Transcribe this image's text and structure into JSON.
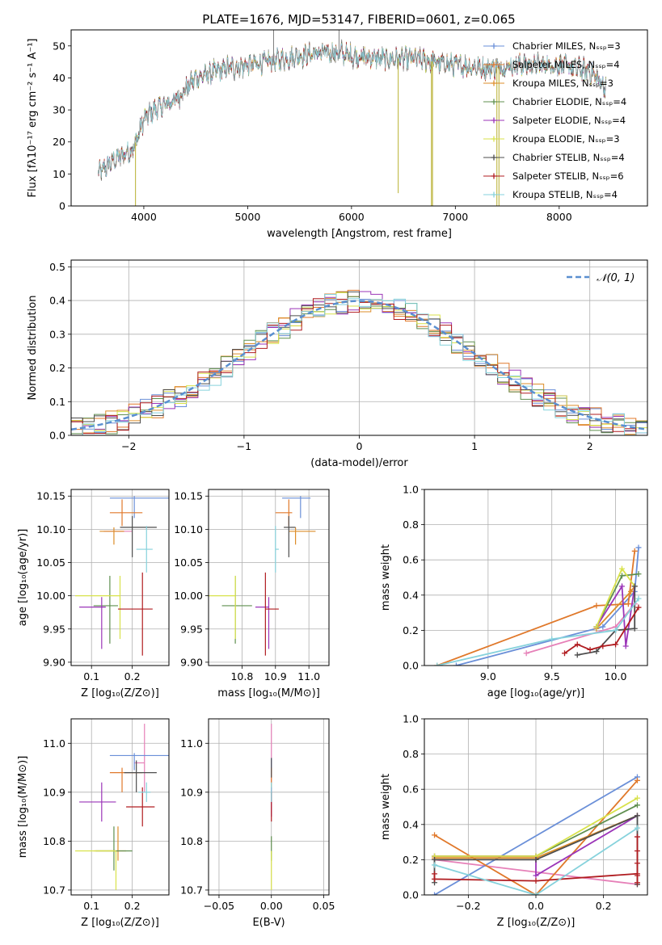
{
  "figure_title": "PLATE=1676, MJD=53147, FIBERID=0601, z=0.065",
  "colors": {
    "series": [
      "#6a8fd8",
      "#e0782a",
      "#dd8e2a",
      "#5f8f4f",
      "#9b35b8",
      "#d8e24a",
      "#4d4d4d",
      "#b01c20",
      "#86d2dc"
    ],
    "extra_pink": "#e680b8",
    "normal_curve": "#5a8fd0"
  },
  "chart_data": [
    {
      "id": "spectrum",
      "type": "line",
      "title": "PLATE=1676, MJD=53147, FIBERID=0601, z=0.065",
      "xlabel": "wavelength [Angstrom, rest frame]",
      "ylabel": "Flux [fλ10⁻¹⁷ erg cm⁻² s⁻¹ A⁻¹]",
      "xlim": [
        3300,
        8850
      ],
      "ylim": [
        0,
        55
      ],
      "xticks": [
        4000,
        5000,
        6000,
        7000,
        8000
      ],
      "yticks": [
        0,
        10,
        20,
        30,
        40,
        50
      ],
      "grid": false,
      "legend_position": "top-right",
      "legend": [
        {
          "label": "Chabrier MILES, Nₛₛₚ=3",
          "marker": "+"
        },
        {
          "label": "Salpeter MILES, Nₛₛₚ=4",
          "marker": "+"
        },
        {
          "label": "Kroupa MILES, Nₛₛₚ=3",
          "marker": "+"
        },
        {
          "label": "Chabrier ELODIE, Nₛₛₚ=4",
          "marker": "+"
        },
        {
          "label": "Salpeter ELODIE, Nₛₛₚ=4",
          "marker": "+"
        },
        {
          "label": "Kroupa ELODIE, Nₛₛₚ=3",
          "marker": "+"
        },
        {
          "label": "Chabrier STELIB, Nₛₛₚ=4",
          "marker": "+"
        },
        {
          "label": "Salpeter STELIB, Nₛₛₚ=6",
          "marker": "+"
        },
        {
          "label": "Kroupa STELIB, Nₛₛₚ=4",
          "marker": "+"
        }
      ],
      "continuum_x": [
        3560,
        3700,
        3900,
        4000,
        4100,
        4300,
        4500,
        4800,
        5000,
        5200,
        5500,
        5800,
        6000,
        6300,
        6600,
        7000,
        7300,
        7600,
        8000,
        8300,
        8450
      ],
      "continuum_y": [
        10,
        14,
        18,
        27,
        30,
        33,
        40,
        43,
        44,
        45,
        47,
        48,
        47,
        46,
        46,
        44,
        43,
        44,
        44,
        42,
        37
      ],
      "spikes": [
        {
          "x": 3920,
          "y": 0
        },
        {
          "x": 5250,
          "y": 55
        },
        {
          "x": 5880,
          "y": 55
        },
        {
          "x": 6450,
          "y": 4
        },
        {
          "x": 6770,
          "y": 0
        },
        {
          "x": 6780,
          "y": 0
        },
        {
          "x": 7400,
          "y": 0
        },
        {
          "x": 7420,
          "y": 0
        }
      ]
    },
    {
      "id": "residuals",
      "type": "line",
      "xlabel": "(data-model)/error",
      "ylabel": "Normed distribution",
      "xlim": [
        -2.5,
        2.5
      ],
      "ylim": [
        0,
        0.52
      ],
      "xticks": [
        -2,
        -1,
        0,
        1,
        2
      ],
      "yticks": [
        0.0,
        0.1,
        0.2,
        0.3,
        0.4,
        0.5
      ],
      "grid": true,
      "legend_position": "top-right",
      "legend": [
        {
          "label": "𝒩(0, 1)",
          "style": "dashed"
        }
      ],
      "bin_width": 0.1,
      "normal": {
        "mean": 0,
        "sigma": 1
      }
    },
    {
      "id": "age-vs-Z",
      "type": "scatter",
      "xlabel": "Z [log₁₀(Z/Z⊙)]",
      "ylabel": "age  [log₁₀(age/yr)]",
      "xlim": [
        0.05,
        0.29
      ],
      "ylim": [
        9.895,
        10.16
      ],
      "xticks": [
        0.1,
        0.2
      ],
      "yticks": [
        9.9,
        9.95,
        10.0,
        10.05,
        10.1,
        10.15
      ],
      "grid": true,
      "points": [
        {
          "x": 0.205,
          "y": 10.147,
          "xerr": [
            0.06,
            0.09
          ],
          "yerr": [
            0.03,
            0.003
          ]
        },
        {
          "x": 0.175,
          "y": 10.125,
          "xerr": [
            0.03,
            0.05
          ],
          "yerr": [
            0.02,
            0.02
          ]
        },
        {
          "x": 0.155,
          "y": 10.097,
          "xerr": [
            0.035,
            0.025
          ],
          "yerr": [
            0.02,
            0.006
          ]
        },
        {
          "x": 0.145,
          "y": 9.985,
          "xerr": [
            0.04,
            0.02
          ],
          "yerr": [
            0.057,
            0.045
          ]
        },
        {
          "x": 0.125,
          "y": 9.983,
          "xerr": [
            0.055,
            0.01
          ],
          "yerr": [
            0.063,
            0.015
          ]
        },
        {
          "x": 0.17,
          "y": 10.0,
          "xerr": [
            0.11,
            0.0
          ],
          "yerr": [
            0.065,
            0.03
          ]
        },
        {
          "x": 0.2,
          "y": 10.103,
          "xerr": [
            0.03,
            0.06
          ],
          "yerr": [
            0.045,
            0.017
          ]
        },
        {
          "x": 0.225,
          "y": 9.98,
          "xerr": [
            0.06,
            0.025
          ],
          "yerr": [
            0.07,
            0.055
          ]
        },
        {
          "x": 0.235,
          "y": 10.07,
          "xerr": [
            0.025,
            0.015
          ],
          "yerr": [
            0.035,
            0.035
          ]
        }
      ],
      "extra_point": {
        "x": 0.18,
        "y": 10.097,
        "xerr": [
          0.05,
          0.02
        ],
        "yerr": [
          0.0,
          0.0
        ]
      }
    },
    {
      "id": "age-vs-mass",
      "type": "scatter",
      "xlabel": "mass [log₁₀(M/M⊙)]",
      "ylabel": "",
      "xlim": [
        10.7,
        11.06
      ],
      "ylim": [
        9.895,
        10.16
      ],
      "xticks": [
        10.8,
        10.9,
        11.0
      ],
      "yticks": [
        9.9,
        9.95,
        10.0,
        10.05,
        10.1,
        10.15
      ],
      "grid": true,
      "points": [
        {
          "x": 10.975,
          "y": 10.147,
          "xerr": [
            0.055,
            0.03
          ],
          "yerr": [
            0.03,
            0.003
          ]
        },
        {
          "x": 10.94,
          "y": 10.125,
          "xerr": [
            0.04,
            0.01
          ],
          "yerr": [
            0.02,
            0.02
          ]
        },
        {
          "x": 10.96,
          "y": 10.097,
          "xerr": [
            0.02,
            0.06
          ],
          "yerr": [
            0.02,
            0.006
          ]
        },
        {
          "x": 10.78,
          "y": 9.985,
          "xerr": [
            0.04,
            0.05
          ],
          "yerr": [
            0.057,
            0.045
          ]
        },
        {
          "x": 10.88,
          "y": 9.983,
          "xerr": [
            0.04,
            0.0
          ],
          "yerr": [
            0.063,
            0.015
          ]
        },
        {
          "x": 10.78,
          "y": 10.0,
          "xerr": [
            0.08,
            0.0
          ],
          "yerr": [
            0.065,
            0.03
          ]
        },
        {
          "x": 10.94,
          "y": 10.103,
          "xerr": [
            0.015,
            0.02
          ],
          "yerr": [
            0.045,
            0.017
          ]
        },
        {
          "x": 10.87,
          "y": 9.98,
          "xerr": [
            0.0,
            0.04
          ],
          "yerr": [
            0.07,
            0.055
          ]
        },
        {
          "x": 10.9,
          "y": 10.07,
          "xerr": [
            0.0,
            0.01
          ],
          "yerr": [
            0.035,
            0.035
          ]
        }
      ],
      "extra_point": {
        "x": 10.96,
        "y": 10.097,
        "xerr": [
          0.0,
          0.0
        ],
        "yerr": [
          0.0,
          0.0
        ]
      }
    },
    {
      "id": "massweight-vs-age",
      "type": "line",
      "xlabel": "age  [log₁₀(age/yr)]",
      "ylabel": "mass weight",
      "xlim": [
        8.5,
        10.25
      ],
      "ylim": [
        0,
        1
      ],
      "xticks": [
        9.0,
        9.5,
        10.0
      ],
      "yticks": [
        0.0,
        0.2,
        0.4,
        0.6,
        0.8,
        1.0
      ],
      "grid": true,
      "series": [
        {
          "x": [
            8.75,
            9.9,
            10.15,
            10.18
          ],
          "y": [
            0.0,
            0.22,
            0.42,
            0.67
          ]
        },
        {
          "x": [
            8.6,
            9.85,
            10.1,
            10.15
          ],
          "y": [
            0.0,
            0.34,
            0.35,
            0.65
          ]
        },
        {
          "x": [
            9.85,
            10.12,
            10.15
          ],
          "y": [
            0.21,
            0.42,
            0.45
          ]
        },
        {
          "x": [
            9.85,
            10.05,
            10.18
          ],
          "y": [
            0.22,
            0.51,
            0.52
          ]
        },
        {
          "x": [
            9.85,
            10.05,
            10.08,
            10.15
          ],
          "y": [
            0.22,
            0.45,
            0.11,
            0.45
          ]
        },
        {
          "x": [
            9.85,
            10.05,
            10.15
          ],
          "y": [
            0.22,
            0.55,
            0.45
          ]
        },
        {
          "x": [
            9.7,
            9.85,
            10.0,
            10.15,
            10.15
          ],
          "y": [
            0.06,
            0.08,
            0.2,
            0.21,
            0.45
          ]
        },
        {
          "x": [
            9.6,
            9.7,
            9.8,
            9.9,
            10.0,
            10.18
          ],
          "y": [
            0.07,
            0.12,
            0.09,
            0.11,
            0.12,
            0.33
          ]
        },
        {
          "x": [
            8.6,
            9.5,
            10.0,
            10.18
          ],
          "y": [
            0.0,
            0.15,
            0.2,
            0.38
          ]
        }
      ],
      "extra_series": {
        "x": [
          9.3,
          10.0,
          10.15
        ],
        "y": [
          0.07,
          0.22,
          0.35
        ]
      }
    },
    {
      "id": "mass-vs-Z",
      "type": "scatter",
      "xlabel": "Z [log₁₀(Z/Z⊙)]",
      "ylabel": "mass [log₁₀(M/M⊙)]",
      "xlim": [
        0.05,
        0.29
      ],
      "ylim": [
        10.69,
        11.05
      ],
      "xticks": [
        0.1,
        0.2
      ],
      "yticks": [
        10.7,
        10.8,
        10.9,
        11.0
      ],
      "grid": true,
      "points": [
        {
          "x": 0.205,
          "y": 10.975,
          "xerr": [
            0.06,
            0.09
          ],
          "yerr": [
            0.03,
            0.005
          ]
        },
        {
          "x": 0.175,
          "y": 10.94,
          "xerr": [
            0.03,
            0.05
          ],
          "yerr": [
            0.04,
            0.01
          ]
        },
        {
          "x": 0.165,
          "y": 10.78,
          "xerr": [
            0.06,
            0.02
          ],
          "yerr": [
            0.02,
            0.05
          ]
        },
        {
          "x": 0.155,
          "y": 10.78,
          "xerr": [
            0.045,
            0.045
          ],
          "yerr": [
            0.04,
            0.05
          ]
        },
        {
          "x": 0.125,
          "y": 10.88,
          "xerr": [
            0.055,
            0.035
          ],
          "yerr": [
            0.04,
            0.04
          ]
        },
        {
          "x": 0.16,
          "y": 10.78,
          "xerr": [
            0.1,
            0.0
          ],
          "yerr": [
            0.08,
            0.0
          ]
        },
        {
          "x": 0.21,
          "y": 10.94,
          "xerr": [
            0.03,
            0.05
          ],
          "yerr": [
            0.04,
            0.025
          ]
        },
        {
          "x": 0.225,
          "y": 10.87,
          "xerr": [
            0.04,
            0.03
          ],
          "yerr": [
            0.04,
            0.04
          ]
        },
        {
          "x": 0.235,
          "y": 10.9,
          "xerr": [
            0.02,
            0.01
          ],
          "yerr": [
            0.02,
            0.02
          ]
        }
      ],
      "extra_point": {
        "x": 0.23,
        "y": 10.96,
        "xerr": [
          0.025,
          0.0
        ],
        "yerr": [
          0.06,
          0.08
        ]
      }
    },
    {
      "id": "mass-vs-ebv",
      "type": "scatter",
      "xlabel": "E(B-V)",
      "ylabel": "",
      "xlim": [
        -0.06,
        0.055
      ],
      "ylim": [
        10.69,
        11.05
      ],
      "xticks": [
        -0.05,
        0.0,
        0.05
      ],
      "yticks": [
        10.7,
        10.8,
        10.9,
        11.0
      ],
      "grid": true,
      "points": [
        {
          "x": 0.0,
          "y": 10.96,
          "xerr": [
            0.0,
            0.0
          ],
          "yerr": [
            0.01,
            0.01
          ]
        },
        {
          "x": 0.0,
          "y": 10.94,
          "xerr": [
            0.0,
            0.0
          ],
          "yerr": [
            0.02,
            0.01
          ]
        },
        {
          "x": 0.0,
          "y": 10.9,
          "xerr": [
            0.0,
            0.0
          ],
          "yerr": [
            0.02,
            0.02
          ]
        },
        {
          "x": 0.0,
          "y": 10.78,
          "xerr": [
            0.0,
            0.0
          ],
          "yerr": [
            0.02,
            0.03
          ]
        },
        {
          "x": 0.0,
          "y": 10.88,
          "xerr": [
            0.0,
            0.0
          ],
          "yerr": [
            0.03,
            0.03
          ]
        },
        {
          "x": 0.0,
          "y": 10.78,
          "xerr": [
            0.0,
            0.0
          ],
          "yerr": [
            0.08,
            0.0
          ]
        },
        {
          "x": 0.0,
          "y": 10.95,
          "xerr": [
            0.0,
            0.0
          ],
          "yerr": [
            0.02,
            0.02
          ]
        },
        {
          "x": 0.0,
          "y": 10.87,
          "xerr": [
            0.0,
            0.0
          ],
          "yerr": [
            0.03,
            0.03
          ]
        },
        {
          "x": 0.0,
          "y": 10.9,
          "xerr": [
            0.0,
            0.0
          ],
          "yerr": [
            0.02,
            0.02
          ]
        }
      ],
      "extra_point": {
        "x": 0.0,
        "y": 10.98,
        "xerr": [
          0.0,
          0.0
        ],
        "yerr": [
          0.06,
          0.06
        ]
      }
    },
    {
      "id": "massweight-vs-Z",
      "type": "line",
      "xlabel": "Z [log₁₀(Z/Z⊙)]",
      "ylabel": "mass weight",
      "xlim": [
        -0.33,
        0.33
      ],
      "ylim": [
        0,
        1
      ],
      "xticks": [
        -0.2,
        0.0,
        0.2
      ],
      "yticks": [
        0.0,
        0.2,
        0.4,
        0.6,
        0.8,
        1.0
      ],
      "grid": true,
      "series": [
        {
          "x": [
            -0.3,
            0.3
          ],
          "y": [
            0.0,
            0.67
          ]
        },
        {
          "x": [
            -0.3,
            0.0,
            0.3
          ],
          "y": [
            0.34,
            0.0,
            0.65
          ]
        },
        {
          "x": [
            -0.3,
            0.0,
            0.3
          ],
          "y": [
            0.21,
            0.21,
            0.45
          ]
        },
        {
          "x": [
            -0.3,
            0.0,
            0.3
          ],
          "y": [
            0.22,
            0.22,
            0.51
          ]
        },
        {
          "x": [
            -0.3,
            0.0,
            0.0,
            0.3
          ],
          "y": [
            0.22,
            0.22,
            0.11,
            0.45
          ]
        },
        {
          "x": [
            -0.3,
            0.0,
            0.3
          ],
          "y": [
            0.22,
            0.22,
            0.55
          ]
        },
        {
          "x": [
            -0.3,
            -0.3,
            0.0,
            0.3,
            0.3
          ],
          "y": [
            0.07,
            0.2,
            0.2,
            0.45,
            0.06
          ]
        },
        {
          "x": [
            -0.3,
            -0.3,
            0.0,
            0.3,
            0.3,
            0.3,
            0.3,
            0.3,
            0.3
          ],
          "y": [
            0.12,
            0.09,
            0.08,
            0.12,
            0.33,
            0.25,
            0.18,
            0.11,
            0.07
          ]
        },
        {
          "x": [
            -0.3,
            0.0,
            0.3
          ],
          "y": [
            0.17,
            0.0,
            0.38
          ]
        }
      ],
      "extra_series": {
        "x": [
          -0.3,
          0.3
        ],
        "y": [
          0.2,
          0.06
        ]
      }
    }
  ]
}
